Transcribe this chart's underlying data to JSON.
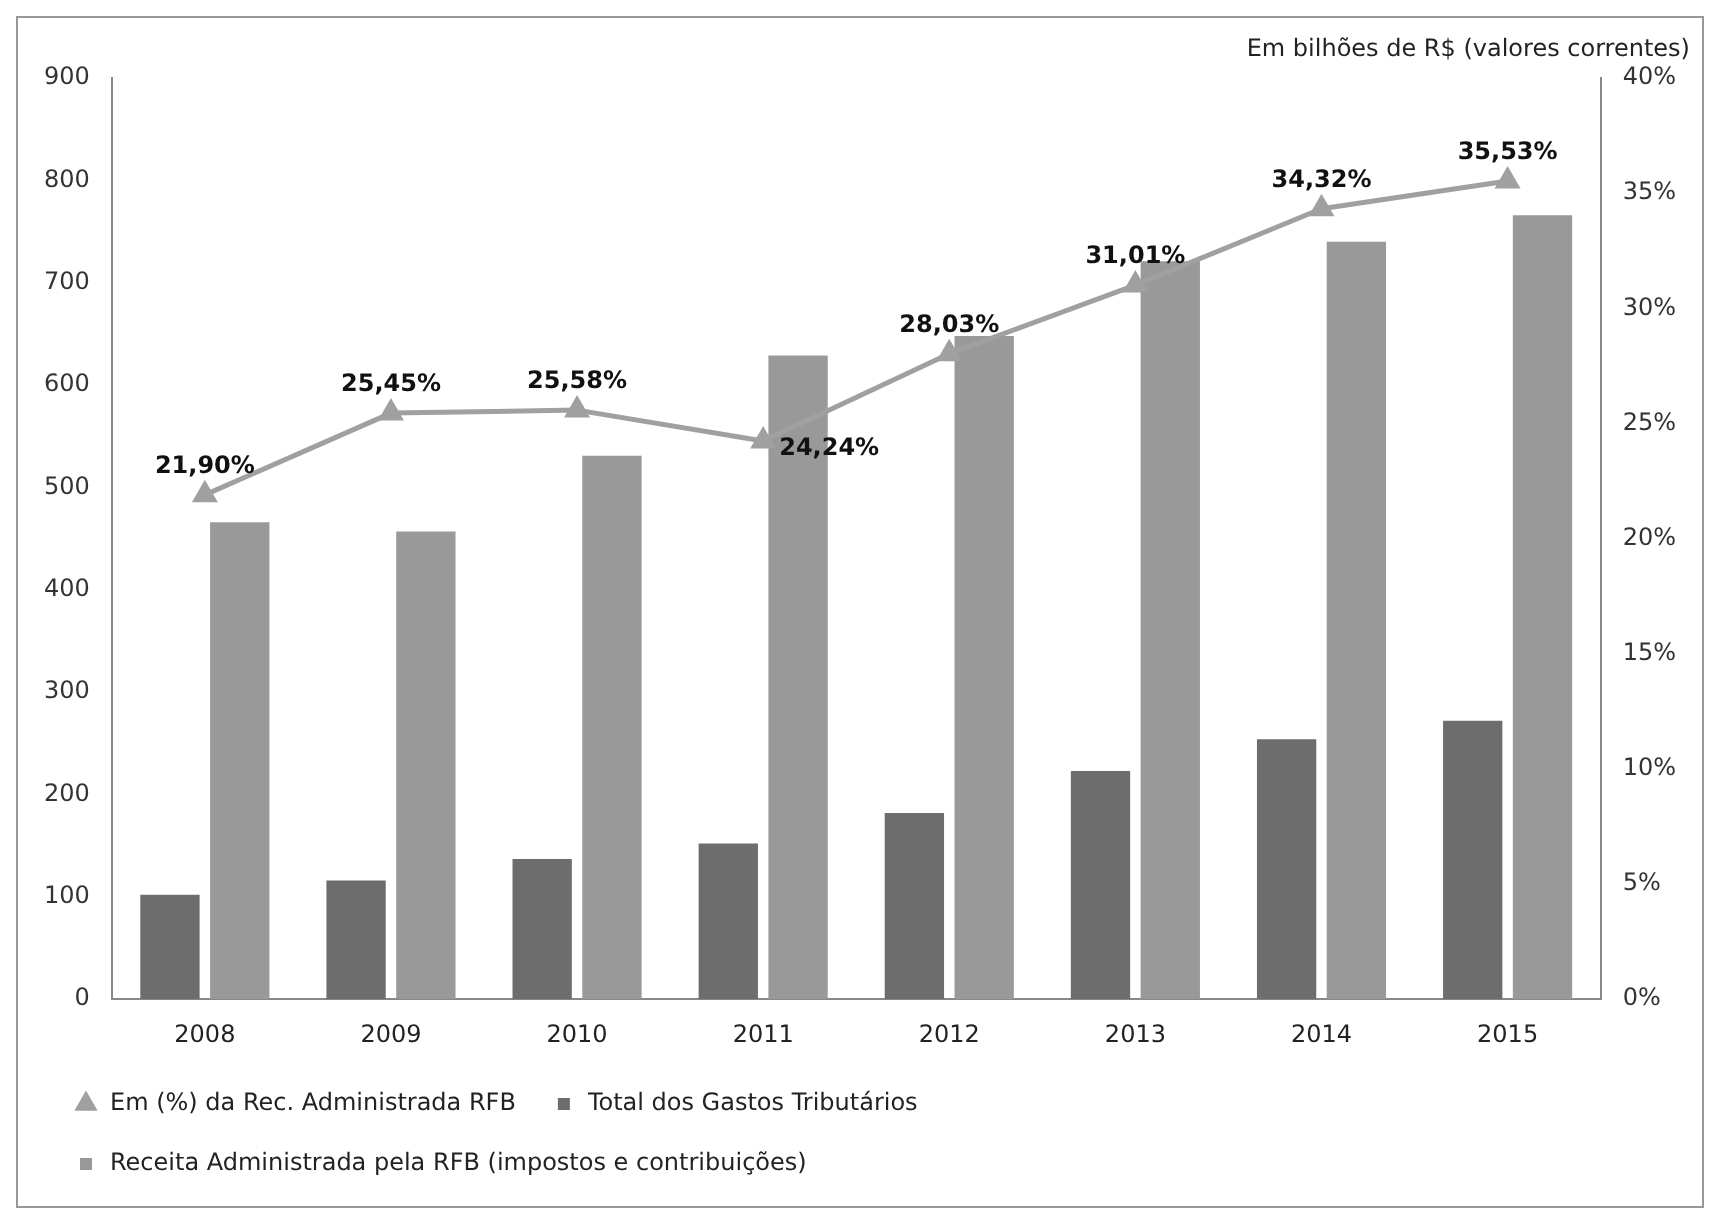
{
  "chart_data": {
    "type": "bar",
    "categories": [
      "2008",
      "2009",
      "2010",
      "2011",
      "2012",
      "2013",
      "2014",
      "2015"
    ],
    "series": [
      {
        "name": "Total dos Gastos Tributários",
        "color": "#6d6d6d",
        "values": [
          102,
          116,
          137,
          152,
          182,
          223,
          254,
          272
        ]
      },
      {
        "name": "Receita Administrada pela RFB (impostos e contribuições)",
        "color": "#999999",
        "values": [
          466,
          457,
          531,
          629,
          648,
          721,
          740,
          766
        ]
      },
      {
        "name": "Em (%) da Rec. Administrada RFB",
        "type": "line",
        "axis": "y2",
        "color": "#a0a0a0",
        "marker": "triangle",
        "values": [
          21.9,
          25.45,
          25.58,
          24.24,
          28.03,
          31.01,
          34.32,
          35.53
        ],
        "value_labels": [
          "21,90%",
          "25,45%",
          "25,58%",
          "24,24%",
          "28,03%",
          "31,01%",
          "34,32%",
          "35,53%"
        ]
      }
    ],
    "ylim": [
      0,
      900
    ],
    "yticks": [
      0,
      100,
      200,
      300,
      400,
      500,
      600,
      700,
      800,
      900
    ],
    "y2lim": [
      0,
      40
    ],
    "y2ticks": [
      {
        "value": 0,
        "label": "0%"
      },
      {
        "value": 5,
        "label": "5%"
      },
      {
        "value": 10,
        "label": "10%"
      },
      {
        "value": 15,
        "label": "15%"
      },
      {
        "value": 20,
        "label": "20%"
      },
      {
        "value": 25,
        "label": "25%"
      },
      {
        "value": 30,
        "label": "30%"
      },
      {
        "value": 35,
        "label": "35%"
      },
      {
        "value": 40,
        "label": "40%"
      }
    ],
    "annotations": [
      "Em bilhões de R$ (valores correntes)"
    ],
    "grid": false,
    "legend": "bottom"
  }
}
